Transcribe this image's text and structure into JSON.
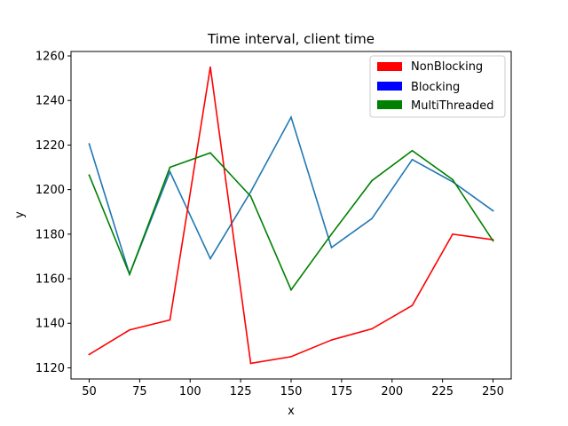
{
  "chart_data": {
    "type": "line",
    "title": "Time interval, client time",
    "xlabel": "x",
    "ylabel": "y",
    "xlim": [
      41,
      259
    ],
    "ylim": [
      1115,
      1262
    ],
    "xticks": [
      50,
      75,
      100,
      125,
      150,
      175,
      200,
      225,
      250
    ],
    "yticks": [
      1120,
      1140,
      1160,
      1180,
      1200,
      1220,
      1240,
      1260
    ],
    "x": [
      50,
      70,
      90,
      110,
      130,
      150,
      170,
      190,
      210,
      230,
      250
    ],
    "series": [
      {
        "values": [
          1220.5,
          1162,
          1208,
          1169,
          1199,
          1232.5,
          1174,
          1187,
          1213.5,
          1203.5,
          1190.5
        ],
        "color": "#1f77b4"
      },
      {
        "name": "NonBlocking",
        "values": [
          1126,
          1137,
          1141.5,
          1255,
          1122,
          1125,
          1132.5,
          1137.5,
          1148,
          1180,
          1177.5
        ],
        "color": "#ff0000"
      },
      {
        "name": "MultiThreaded",
        "values": [
          1206.5,
          1162,
          1210,
          1216.5,
          1197,
          1155,
          1180,
          1204,
          1217.5,
          1204.5,
          1177
        ],
        "color": "#008000"
      }
    ],
    "legend": {
      "position": "top-right",
      "entries": [
        {
          "label": "NonBlocking",
          "color": "#ff0000"
        },
        {
          "label": "Blocking",
          "color": "#0000ff"
        },
        {
          "label": "MultiThreaded",
          "color": "#008000"
        }
      ]
    },
    "grid": false
  }
}
